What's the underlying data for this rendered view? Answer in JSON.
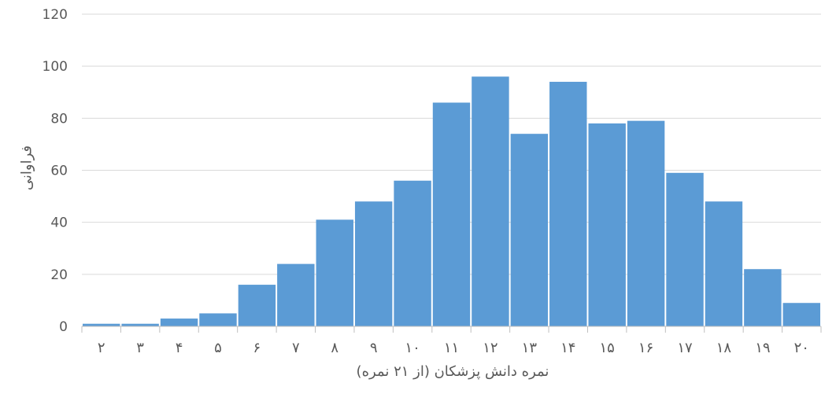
{
  "chart_data": {
    "type": "bar",
    "categories": [
      "۲",
      "۳",
      "۴",
      "۵",
      "۶",
      "۷",
      "۸",
      "۹",
      "۱۰",
      "۱۱",
      "۱۲",
      "۱۳",
      "۱۴",
      "۱۵",
      "۱۶",
      "۱۷",
      "۱۸",
      "۱۹",
      "۲۰"
    ],
    "values": [
      1,
      1,
      3,
      5,
      16,
      24,
      41,
      48,
      56,
      86,
      96,
      74,
      94,
      78,
      79,
      59,
      48,
      22,
      9
    ],
    "title": "",
    "xlabel": "نمره دانش پزشکان (از ۲۱ نمره)",
    "ylabel": "فراوانی",
    "ylim": [
      0,
      120
    ],
    "yticks": [
      "0",
      "20",
      "40",
      "60",
      "80",
      "100",
      "120"
    ],
    "grid": true,
    "legend": "none",
    "colors": {
      "bar": "#5b9bd5",
      "grid": "#d9d9d9",
      "axis": "#bfbfbf",
      "text": "#595959"
    }
  }
}
